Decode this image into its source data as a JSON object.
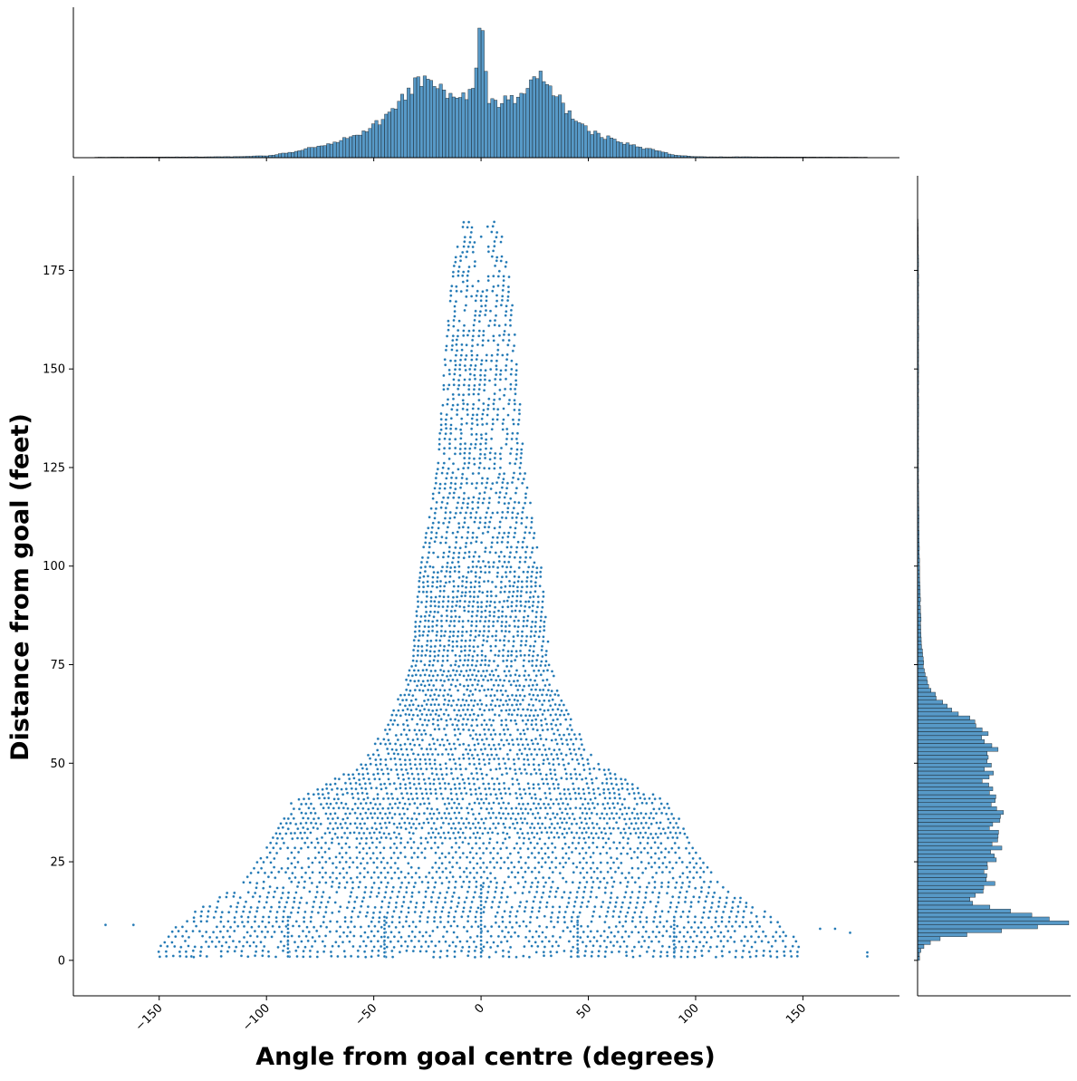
{
  "chart_data": {
    "type": "scatter",
    "kind": "joint plot with marginal histograms",
    "xlabel": "Angle from goal centre (degrees)",
    "ylabel": "Distance from goal (feet)",
    "xlim": [
      -190,
      195
    ],
    "ylim": [
      -9,
      199
    ],
    "xticks": [
      -150,
      -100,
      -50,
      0,
      50,
      100,
      150
    ],
    "xtick_labels": [
      "−150",
      "−100",
      "−50",
      "0",
      "50",
      "100",
      "150"
    ],
    "yticks": [
      0,
      25,
      50,
      75,
      100,
      125,
      150,
      175
    ],
    "ytick_labels": [
      "0",
      "25",
      "50",
      "75",
      "100",
      "125",
      "150",
      "175"
    ],
    "x_tick_rotation_deg": 45,
    "color": "#1f77b4",
    "grid": false,
    "legend": "none",
    "scatter_description": "Dense cloud of shot locations in polar (angle, distance) coordinates; narrow column near 0 degrees reaching ~188 ft, widening below ~75 ft into a fan spanning about -90 to +90 degrees under ~40 ft, with sparse outliers out to +/-180 degrees near 0-12 ft.",
    "scatter_envelope": {
      "distance": [
        188,
        175,
        150,
        125,
        100,
        75,
        60,
        50,
        40,
        30,
        20,
        10,
        3
      ],
      "half_width_deg": [
        8,
        13,
        17,
        20,
        28,
        32,
        43,
        55,
        88,
        98,
        110,
        140,
        150
      ]
    },
    "outliers": [
      {
        "x": -175,
        "y": 9
      },
      {
        "x": -162,
        "y": 9
      },
      {
        "x": -135,
        "y": 1
      },
      {
        "x": 135,
        "y": 1
      },
      {
        "x": 180,
        "y": 2
      },
      {
        "x": 180,
        "y": 1
      },
      {
        "x": 172,
        "y": 7
      },
      {
        "x": 165,
        "y": 8
      },
      {
        "x": 158,
        "y": 8
      }
    ],
    "x_marginal_histogram": {
      "bin_width_deg": 1.5,
      "range": [
        -180,
        180
      ],
      "peak_count_units": 157,
      "profile": [
        {
          "x": -175,
          "h": 0.5
        },
        {
          "x": -115,
          "h": 1
        },
        {
          "x": -100,
          "h": 2
        },
        {
          "x": -90,
          "h": 5
        },
        {
          "x": -80,
          "h": 10
        },
        {
          "x": -70,
          "h": 14
        },
        {
          "x": -60,
          "h": 22
        },
        {
          "x": -55,
          "h": 26
        },
        {
          "x": -50,
          "h": 32
        },
        {
          "x": -45,
          "h": 44
        },
        {
          "x": -40,
          "h": 55
        },
        {
          "x": -35,
          "h": 68
        },
        {
          "x": -30,
          "h": 78
        },
        {
          "x": -27,
          "h": 86
        },
        {
          "x": -22,
          "h": 76
        },
        {
          "x": -17,
          "h": 66
        },
        {
          "x": -12,
          "h": 57
        },
        {
          "x": -7,
          "h": 65
        },
        {
          "x": -3,
          "h": 70
        },
        {
          "x": 0,
          "h": 157
        },
        {
          "x": 3,
          "h": 60
        },
        {
          "x": 7,
          "h": 55
        },
        {
          "x": 12,
          "h": 60
        },
        {
          "x": 17,
          "h": 62
        },
        {
          "x": 22,
          "h": 72
        },
        {
          "x": 27,
          "h": 84
        },
        {
          "x": 32,
          "h": 76
        },
        {
          "x": 37,
          "h": 60
        },
        {
          "x": 42,
          "h": 44
        },
        {
          "x": 47,
          "h": 33
        },
        {
          "x": 52,
          "h": 26
        },
        {
          "x": 60,
          "h": 20
        },
        {
          "x": 70,
          "h": 13
        },
        {
          "x": 80,
          "h": 8
        },
        {
          "x": 90,
          "h": 3
        },
        {
          "x": 100,
          "h": 1
        },
        {
          "x": 180,
          "h": 0.5
        }
      ]
    },
    "y_marginal_histogram": {
      "bin_width_ft": 1,
      "range": [
        0,
        188
      ],
      "peak_count_units": 158,
      "profile": [
        {
          "y": 2,
          "h": 2
        },
        {
          "y": 4,
          "h": 8
        },
        {
          "y": 6,
          "h": 28
        },
        {
          "y": 8,
          "h": 110
        },
        {
          "y": 9,
          "h": 158
        },
        {
          "y": 10,
          "h": 145
        },
        {
          "y": 12,
          "h": 96
        },
        {
          "y": 14,
          "h": 62
        },
        {
          "y": 16,
          "h": 50
        },
        {
          "y": 18,
          "h": 75
        },
        {
          "y": 20,
          "h": 72
        },
        {
          "y": 24,
          "h": 72
        },
        {
          "y": 28,
          "h": 80
        },
        {
          "y": 32,
          "h": 78
        },
        {
          "y": 36,
          "h": 84
        },
        {
          "y": 40,
          "h": 78
        },
        {
          "y": 44,
          "h": 70
        },
        {
          "y": 48,
          "h": 76
        },
        {
          "y": 52,
          "h": 80
        },
        {
          "y": 56,
          "h": 74
        },
        {
          "y": 60,
          "h": 62
        },
        {
          "y": 63,
          "h": 42
        },
        {
          "y": 66,
          "h": 22
        },
        {
          "y": 70,
          "h": 10
        },
        {
          "y": 75,
          "h": 6
        },
        {
          "y": 80,
          "h": 4
        },
        {
          "y": 90,
          "h": 3
        },
        {
          "y": 100,
          "h": 2
        },
        {
          "y": 120,
          "h": 1
        },
        {
          "y": 150,
          "h": 1
        },
        {
          "y": 175,
          "h": 1
        },
        {
          "y": 188,
          "h": 0.5
        }
      ]
    }
  }
}
